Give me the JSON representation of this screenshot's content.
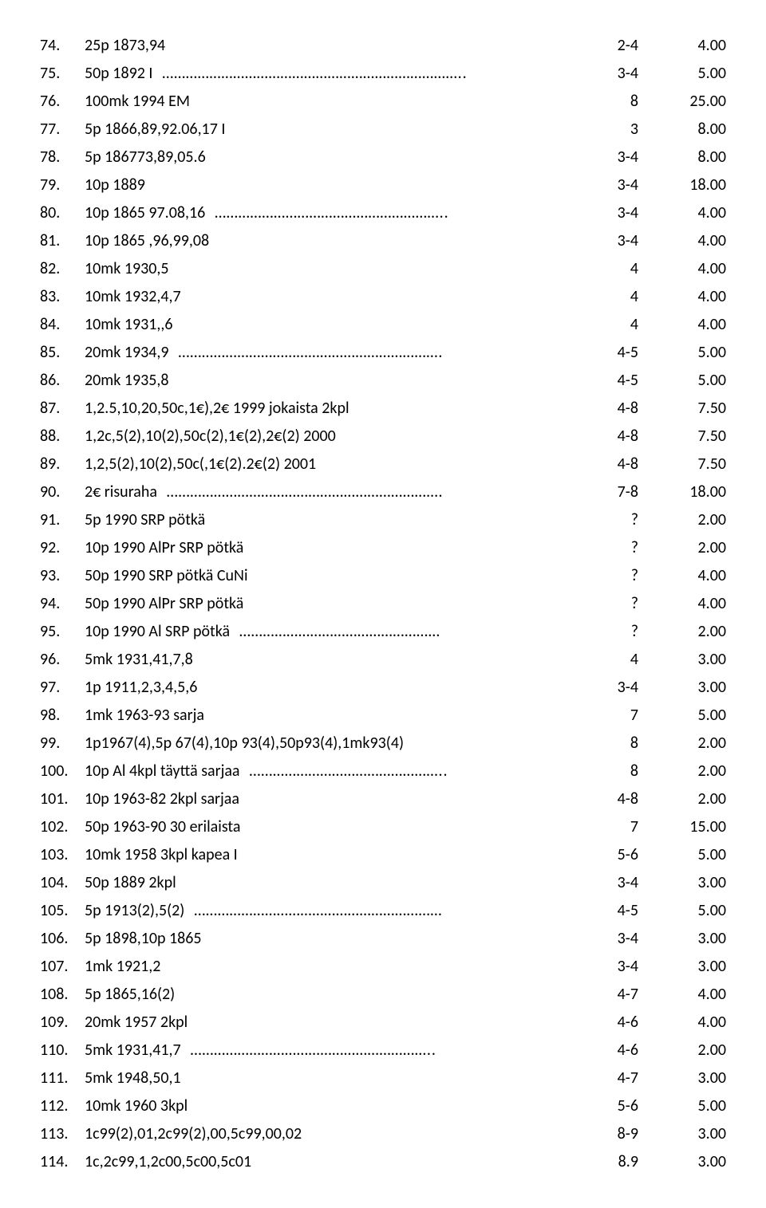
{
  "rows": [
    {
      "n": "74.",
      "desc": "25p 1873,94",
      "dots": "",
      "cond": "2-4",
      "price": "4.00"
    },
    {
      "n": "75.",
      "desc": "50p 1892 I",
      "dots": "…………………………………………………………………..",
      "cond": "3-4",
      "price": "5.00"
    },
    {
      "n": "76.",
      "desc": "100mk 1994 EM",
      "dots": "",
      "cond": "8",
      "price": "25.00"
    },
    {
      "n": "77.",
      "desc": "5p 1866,89,92.06,17 I",
      "dots": "",
      "cond": "3",
      "price": "8.00"
    },
    {
      "n": "78.",
      "desc": "5p 186773,89,05.6",
      "dots": "",
      "cond": "3-4",
      "price": "8.00"
    },
    {
      "n": "79.",
      "desc": "10p 1889",
      "dots": "",
      "cond": "3-4",
      "price": "18.00"
    },
    {
      "n": "80.",
      "desc": "10p 1865 97.08,16",
      "dots": "…………………………………………………..",
      "cond": "3-4",
      "price": "4.00"
    },
    {
      "n": "81.",
      "desc": "10p 1865 ,96,99,08",
      "dots": "",
      "cond": "3-4",
      "price": "4.00"
    },
    {
      "n": "82.",
      "desc": "10mk 1930,5",
      "dots": "",
      "cond": "4",
      "price": "4.00"
    },
    {
      "n": "83.",
      "desc": "10mk 1932,4,7",
      "dots": "",
      "cond": "4",
      "price": "4.00"
    },
    {
      "n": "84.",
      "desc": "10mk 1931,,6",
      "dots": "",
      "cond": "4",
      "price": "4.00"
    },
    {
      "n": "85.",
      "desc": "20mk 1934,9",
      "dots": "………………………………………………………….",
      "cond": "4-5",
      "price": "5.00"
    },
    {
      "n": "86.",
      "desc": "20mk 1935,8",
      "dots": "",
      "cond": "4-5",
      "price": "5.00"
    },
    {
      "n": "87.",
      "desc": "1,2.5,10,20,50c,1€),2€ 1999 jokaista 2kpl",
      "dots": "",
      "cond": "4-8",
      "price": "7.50"
    },
    {
      "n": "88.",
      "desc": "1,2c,5(2),10(2),50c(2),1€(2),2€(2) 2000",
      "dots": "",
      "cond": "4-8",
      "price": "7.50"
    },
    {
      "n": "89.",
      "desc": "1,2,5(2),10(2),50c(,1€(2).2€(2) 2001",
      "dots": "",
      "cond": "4-8",
      "price": "7.50"
    },
    {
      "n": "90.",
      "desc": "2€ risuraha",
      "dots": "…………………………………………………………….",
      "cond": "7-8",
      "price": "18.00"
    },
    {
      "n": "91.",
      "desc": "5p 1990 SRP pötkä",
      "dots": "",
      "cond": "?",
      "price": "2.00"
    },
    {
      "n": "92.",
      "desc": "10p 1990 AlPr SRP pötkä",
      "dots": "",
      "cond": "?",
      "price": "2.00"
    },
    {
      "n": "93.",
      "desc": "50p 1990 SRP pötkä CuNi",
      "dots": "",
      "cond": "?",
      "price": "4.00"
    },
    {
      "n": "94.",
      "desc": "50p 1990 AlPr SRP pötkä",
      "dots": "",
      "cond": "?",
      "price": "4.00"
    },
    {
      "n": "95.",
      "desc": "10p 1990 Al SRP pötkä",
      "dots": "……………………………………………",
      "cond": "?",
      "price": "2.00"
    },
    {
      "n": "96.",
      "desc": "5mk 1931,41,7,8",
      "dots": "",
      "cond": "4",
      "price": "3.00"
    },
    {
      "n": "97.",
      "desc": "1p 1911,2,3,4,5,6",
      "dots": "",
      "cond": "3-4",
      "price": "3.00"
    },
    {
      "n": "98.",
      "desc": "1mk 1963-93 sarja",
      "dots": "",
      "cond": "7",
      "price": "5.00"
    },
    {
      "n": "99.",
      "desc": "1p1967(4),5p 67(4),10p 93(4),50p93(4),1mk93(4)",
      "dots": "",
      "cond": "8",
      "price": "2.00"
    },
    {
      "n": "100.",
      "desc": "10p Al 4kpl täyttä sarjaa",
      "dots": "…………………………………………..",
      "cond": "8",
      "price": "2.00"
    },
    {
      "n": "101.",
      "desc": "10p 1963-82 2kpl sarjaa",
      "dots": "",
      "cond": "4-8",
      "price": "2.00"
    },
    {
      "n": "102.",
      "desc": "50p 1963-90 30 erilaista",
      "dots": "",
      "cond": "7",
      "price": "15.00"
    },
    {
      "n": "103.",
      "desc": "10mk 1958 3kpl kapea I",
      "dots": "",
      "cond": "5-6",
      "price": "5.00"
    },
    {
      "n": "104.",
      "desc": "50p 1889 2kpl",
      "dots": "",
      "cond": "3-4",
      "price": "3.00"
    },
    {
      "n": "105.",
      "desc": "5p 1913(2),5(2)",
      "dots": "………………………………………………………",
      "cond": "4-5",
      "price": "5.00"
    },
    {
      "n": "106.",
      "desc": "5p 1898,10p 1865",
      "dots": "",
      "cond": "3-4",
      "price": "3.00"
    },
    {
      "n": "107.",
      "desc": "1mk 1921,2",
      "dots": "",
      "cond": "3-4",
      "price": "3.00"
    },
    {
      "n": "108.",
      "desc": "5p 1865,16(2)",
      "dots": "",
      "cond": "4-7",
      "price": "4.00"
    },
    {
      "n": "109.",
      "desc": "20mk 1957 2kpl",
      "dots": "",
      "cond": "4-6",
      "price": "4.00"
    },
    {
      "n": "110.",
      "desc": "5mk 1931,41,7",
      "dots": "……………………………………………………..",
      "cond": "4-6",
      "price": "2.00"
    },
    {
      "n": "111.",
      "desc": "5mk 1948,50,1",
      "dots": "",
      "cond": "4-7",
      "price": "3.00"
    },
    {
      "n": "112.",
      "desc": "10mk 1960 3kpl",
      "dots": "",
      "cond": "5-6",
      "price": "5.00"
    },
    {
      "n": "113.",
      "desc": "1c99(2),01,2c99(2),00,5c99,00,02",
      "dots": "",
      "cond": "8-9",
      "price": "3.00"
    },
    {
      "n": "114.",
      "desc": "1c,2c99,1,2c00,5c00,5c01",
      "dots": "",
      "cond": "8.9",
      "price": "3.00"
    }
  ]
}
